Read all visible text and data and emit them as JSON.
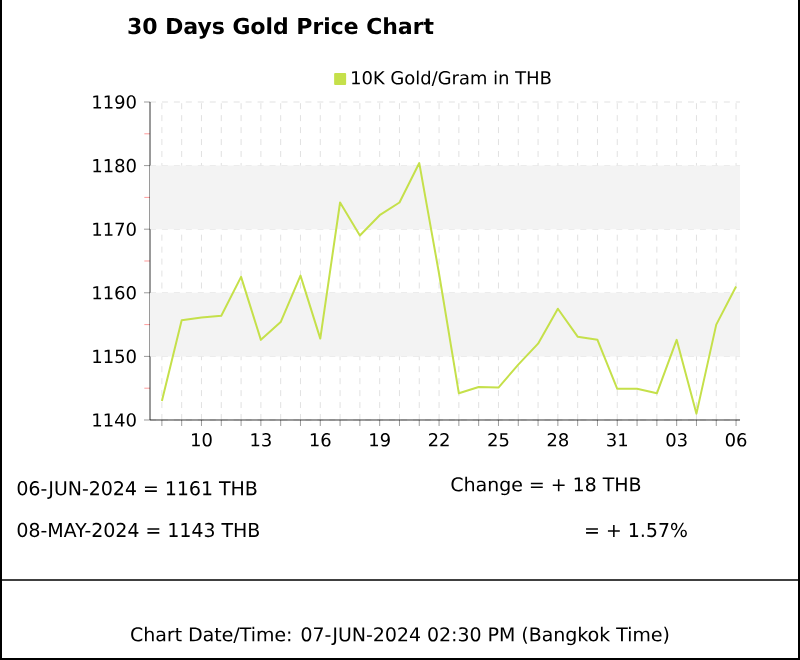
{
  "chart_data": {
    "type": "line",
    "title": "30 Days Gold Price Chart",
    "categories": [
      null,
      null,
      "10",
      null,
      null,
      "13",
      null,
      null,
      "16",
      null,
      null,
      "19",
      null,
      null,
      "22",
      null,
      null,
      "25",
      null,
      null,
      "28",
      null,
      null,
      "31",
      null,
      null,
      "03",
      null,
      null,
      "06"
    ],
    "series": [
      {
        "name": "10K Gold/Gram  in THB",
        "color": "#c5e04a",
        "values": [
          1143,
          1155.7,
          1156.1,
          1156.4,
          1162.5,
          1152.6,
          1155.4,
          1162.7,
          1152.8,
          1174.2,
          1169.0,
          1172.2,
          1174.2,
          1180.4,
          1163.0,
          1144.2,
          1145.2,
          1145.1,
          1148.7,
          1152.0,
          1157.5,
          1153.1,
          1152.6,
          1144.9,
          1144.9,
          1144.2,
          1152.6,
          1141.0,
          1155.0,
          1161
        ]
      }
    ],
    "ylim": [
      1140,
      1190
    ],
    "yticks": [
      1140,
      1150,
      1160,
      1170,
      1180,
      1190
    ],
    "bands": [
      {
        "axis": "y",
        "from": 1150,
        "to": 1160,
        "color": "#f3f3f3"
      },
      {
        "axis": "y",
        "from": 1170,
        "to": 1180,
        "color": "#f3f3f3"
      }
    ],
    "grid": true,
    "legend": "top",
    "marker": "none",
    "line_style": "solid",
    "annotations": [
      "06-JUN-2024 = 1161 THB",
      "08-MAY-2024 = 1143 THB",
      "Change   = + 18 THB",
      "= + 1.57%",
      "Chart Date/Time: 07-JUN-2024 02:30 PM (Bangkok Time)"
    ]
  }
}
